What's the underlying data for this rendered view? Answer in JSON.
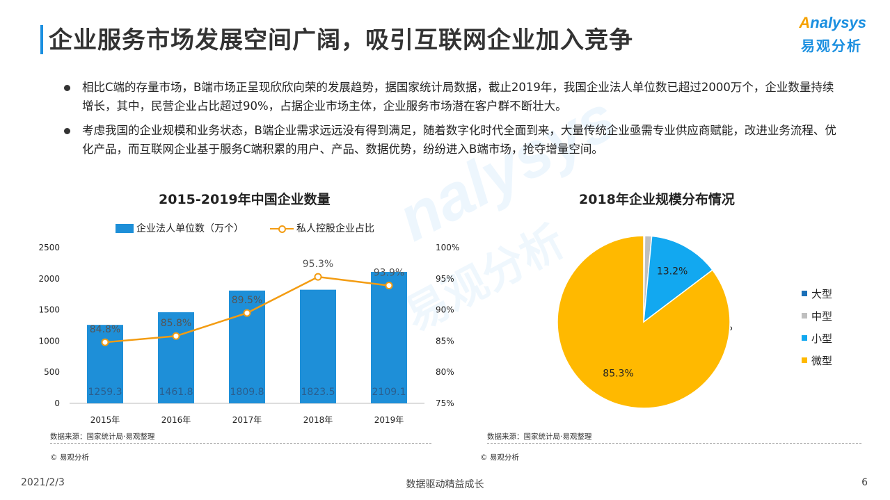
{
  "page": {
    "title": "企业服务市场发展空间广阔，吸引互联网企业加入竞争",
    "logo_en": "nalysys",
    "logo_en_prefix": "A",
    "logo_cn": "易观分析",
    "watermark_en": "nalysys",
    "watermark_cn": "易观分析"
  },
  "bullets": [
    "相比C端的存量市场，B端市场正呈现欣欣向荣的发展趋势，据国家统计局数据，截止2019年，我国企业法人单位数已超过2000万个，企业数量持续增长，其中，民营企业占比超过90%，占据企业市场主体，企业服务市场潜在客户群不断壮大。",
    "考虑我国的企业规模和业务状态，B端企业需求远远没有得到满足，随着数字化时代全面到来，大量传统企业亟需专业供应商赋能，改进业务流程、优化产品，而互联网企业基于服务C端积累的用户、产品、数据优势，纷纷进入B端市场，抢夺增量空间。"
  ],
  "chart_data": [
    {
      "type": "bar",
      "title": "2015-2019年中国企业数量",
      "categories": [
        "2015年",
        "2016年",
        "2017年",
        "2018年",
        "2019年"
      ],
      "series": [
        {
          "name": "企业法人单位数（万个）",
          "type": "bar",
          "axis": "left",
          "values": [
            1259.3,
            1461.8,
            1809.8,
            1823.5,
            2109.1
          ],
          "labels": [
            "1259.3",
            "1461.8",
            "1809.8",
            "1823.5",
            "2109.1"
          ],
          "color": "#1e8fd8"
        },
        {
          "name": "私人控股企业占比",
          "type": "line",
          "axis": "right",
          "values": [
            84.8,
            85.8,
            89.5,
            95.3,
            93.9
          ],
          "labels": [
            "84.8%",
            "85.8%",
            "89.5%",
            "95.3%",
            "93.9%"
          ],
          "color": "#f39c12"
        }
      ],
      "yleft": {
        "min": 0,
        "max": 2500,
        "ticks": [
          "0",
          "500",
          "1000",
          "1500",
          "2000",
          "2500"
        ]
      },
      "yright": {
        "min": 75,
        "max": 100,
        "ticks": [
          "75%",
          "80%",
          "85%",
          "90%",
          "95%",
          "100%"
        ]
      },
      "source": "数据来源：国家统计局·易观整理",
      "copyright": "© 易观分析"
    },
    {
      "type": "pie",
      "title": "2018年企业规模分布情况",
      "slices": [
        {
          "name": "大型",
          "value": 0.2,
          "label": "0.2%",
          "color": "#1a6fb8"
        },
        {
          "name": "中型",
          "value": 1.3,
          "label": "1.3%",
          "color": "#bfbfbf"
        },
        {
          "name": "小型",
          "value": 13.2,
          "label": "13.2%",
          "color": "#12a8f0"
        },
        {
          "name": "微型",
          "value": 85.3,
          "label": "85.3%",
          "color": "#ffb900"
        }
      ],
      "legend_position": "right",
      "source": "数据来源：国家统计局·易观整理",
      "copyright": "© 易观分析"
    }
  ],
  "footer": {
    "date": "2021/2/3",
    "slogan": "数据驱动精益成长",
    "page_number": "6"
  }
}
